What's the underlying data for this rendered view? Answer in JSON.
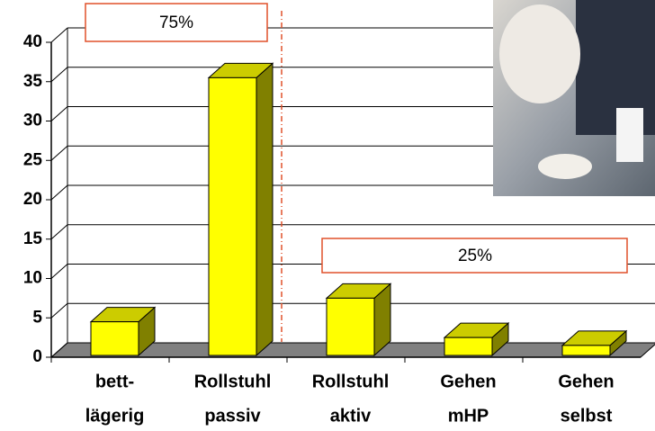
{
  "chart_data": {
    "type": "bar3d",
    "categories": [
      [
        "bett-",
        "lägerig"
      ],
      [
        "Rollstuhl",
        "passiv"
      ],
      [
        "Rollstuhl",
        "aktiv"
      ],
      [
        "Gehen",
        "mHP"
      ],
      [
        "Gehen",
        "selbst"
      ]
    ],
    "values": [
      4.5,
      35.5,
      7.5,
      2.5,
      1.5
    ],
    "color": "#ffff00",
    "ylim": [
      0,
      40
    ],
    "yticks": [
      0,
      5,
      10,
      15,
      20,
      25,
      30,
      35,
      40
    ],
    "grid": true,
    "annotations": [
      "75%",
      "25%"
    ]
  }
}
